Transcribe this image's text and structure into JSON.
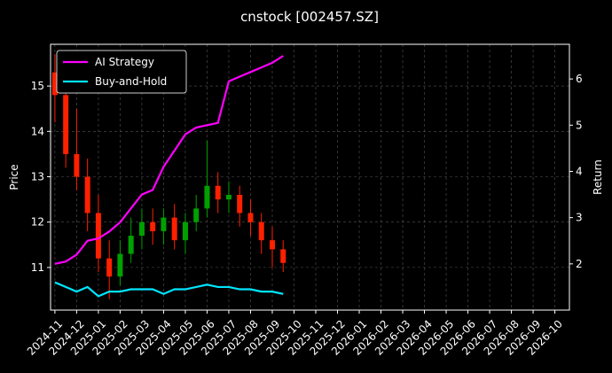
{
  "chart_data": {
    "type": "candlestick-returns",
    "title": "cnstock [002457.SZ]",
    "y_label": "Price",
    "y2_label": "Return",
    "x": [
      0,
      0.5,
      1,
      1.5,
      2,
      2.5,
      3,
      3.5,
      4,
      4.5,
      5,
      5.5,
      6,
      6.5,
      7,
      7.5,
      8,
      8.5,
      9,
      9.5,
      10,
      10.5
    ],
    "open": [
      15.3,
      14.8,
      13.5,
      13.0,
      12.2,
      11.2,
      10.8,
      11.3,
      11.7,
      12.0,
      11.8,
      12.1,
      11.6,
      12.0,
      12.3,
      12.8,
      12.5,
      12.6,
      12.2,
      12.0,
      11.6,
      11.4
    ],
    "high": [
      15.7,
      15.1,
      14.5,
      13.4,
      12.6,
      11.6,
      11.6,
      12.1,
      12.3,
      12.3,
      12.3,
      12.4,
      12.2,
      12.6,
      13.8,
      13.1,
      12.9,
      12.8,
      12.5,
      12.2,
      11.9,
      11.6
    ],
    "low": [
      14.2,
      13.2,
      12.7,
      11.8,
      10.9,
      10.3,
      10.6,
      11.1,
      11.4,
      11.5,
      11.5,
      11.4,
      11.3,
      11.8,
      12.1,
      12.2,
      12.2,
      11.9,
      11.7,
      11.3,
      11.0,
      10.9
    ],
    "close": [
      14.8,
      13.5,
      13.0,
      12.2,
      11.2,
      10.8,
      11.3,
      11.7,
      12.0,
      11.8,
      12.1,
      11.6,
      12.0,
      12.3,
      12.8,
      12.5,
      12.6,
      12.2,
      12.0,
      11.6,
      11.4,
      11.1
    ],
    "up_color": "#00a000",
    "down_color": "#ff2000",
    "series": [
      {
        "name": "AI Strategy",
        "color": "#ff00ff",
        "axis": "y2",
        "values": [
          2.0,
          2.05,
          2.2,
          2.5,
          2.55,
          2.7,
          2.9,
          3.2,
          3.5,
          3.6,
          4.1,
          4.45,
          4.8,
          4.95,
          5.0,
          5.05,
          5.95,
          6.05,
          6.15,
          6.25,
          6.35,
          6.5
        ]
      },
      {
        "name": "Buy-and-Hold",
        "color": "#00e5ff",
        "axis": "y2",
        "values": [
          1.6,
          1.5,
          1.4,
          1.5,
          1.3,
          1.4,
          1.4,
          1.45,
          1.45,
          1.45,
          1.35,
          1.45,
          1.45,
          1.5,
          1.55,
          1.5,
          1.5,
          1.45,
          1.45,
          1.4,
          1.4,
          1.35
        ]
      }
    ],
    "xlim": [
      -0.2,
      23.67
    ],
    "xticks": [
      {
        "value": 0,
        "label": "2024-11"
      },
      {
        "value": 1,
        "label": "2024-12"
      },
      {
        "value": 2,
        "label": "2025-01"
      },
      {
        "value": 3,
        "label": "2025-02"
      },
      {
        "value": 4,
        "label": "2025-03"
      },
      {
        "value": 5,
        "label": "2025-04"
      },
      {
        "value": 6,
        "label": "2025-05"
      },
      {
        "value": 7,
        "label": "2025-06"
      },
      {
        "value": 8,
        "label": "2025-07"
      },
      {
        "value": 9,
        "label": "2025-08"
      },
      {
        "value": 10,
        "label": "2025-09"
      },
      {
        "value": 11,
        "label": "2025-10"
      },
      {
        "value": 12,
        "label": "2025-11"
      },
      {
        "value": 13,
        "label": "2025-12"
      },
      {
        "value": 14,
        "label": "2026-01"
      },
      {
        "value": 15,
        "label": "2026-02"
      },
      {
        "value": 16,
        "label": "2026-03"
      },
      {
        "value": 17,
        "label": "2026-04"
      },
      {
        "value": 18,
        "label": "2026-05"
      },
      {
        "value": 19,
        "label": "2026-06"
      },
      {
        "value": 20,
        "label": "2026-07"
      },
      {
        "value": 21,
        "label": "2026-08"
      },
      {
        "value": 22,
        "label": "2026-09"
      },
      {
        "value": 23,
        "label": "2026-10"
      }
    ],
    "ylim": [
      10.06,
      15.92
    ],
    "yticks": [
      11,
      12,
      13,
      14,
      15
    ],
    "y2lim": [
      1.0,
      6.75
    ],
    "y2ticks": [
      2,
      3,
      4,
      5,
      6
    ],
    "grid": true,
    "legend": "upper-left"
  }
}
